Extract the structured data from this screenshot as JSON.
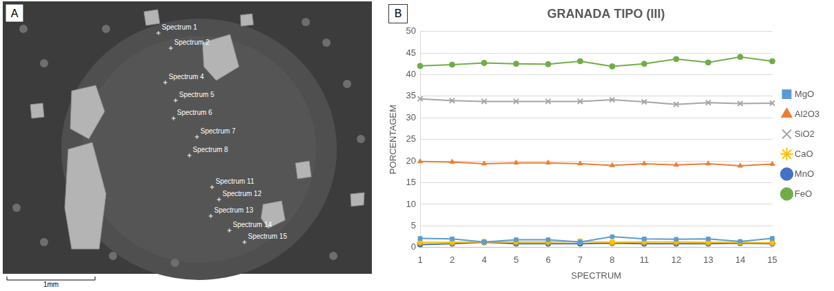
{
  "image_panel": {
    "letter": "A",
    "scale_bar": "1mm",
    "spectra": [
      "Spectrum 1",
      "Spectrum 2",
      "Spectrum 4",
      "Spectrum 5",
      "Spectrum 6",
      "Spectrum 7",
      "Spectrum 8",
      "Spectrum 11",
      "Spectrum 12",
      "Spectrum 13",
      "Spectrum 14",
      "Spectrum 15"
    ]
  },
  "chart_panel_letter": "B",
  "chart_data": {
    "type": "line",
    "title": "GRANADA TIPO (III)",
    "x_label": "SPECTRUM",
    "y_label": "PORCENTAGEM",
    "categories": [
      1,
      2,
      4,
      5,
      6,
      7,
      8,
      11,
      12,
      13,
      14,
      15
    ],
    "series": [
      {
        "name": "MgO",
        "color": "#5b9bd5",
        "marker": "square",
        "values": [
          2.1,
          2.0,
          1.3,
          1.8,
          1.8,
          1.3,
          2.5,
          2.0,
          1.9,
          2.0,
          1.4,
          2.1
        ]
      },
      {
        "name": "Al2O3",
        "color": "#ed7d31",
        "marker": "triangle",
        "values": [
          19.9,
          19.8,
          19.4,
          19.6,
          19.6,
          19.4,
          19.0,
          19.4,
          19.1,
          19.4,
          18.9,
          19.3
        ]
      },
      {
        "name": "SiO2",
        "color": "#a5a5a5",
        "marker": "cross",
        "values": [
          34.4,
          34.0,
          33.8,
          33.8,
          33.8,
          33.8,
          34.2,
          33.7,
          33.1,
          33.5,
          33.3,
          33.4
        ]
      },
      {
        "name": "CaO",
        "color": "#ffc000",
        "marker": "star",
        "values": [
          1.2,
          1.2,
          1.3,
          1.3,
          1.3,
          1.4,
          1.2,
          1.3,
          1.3,
          1.2,
          1.2,
          1.1
        ]
      },
      {
        "name": "MnO",
        "color": "#4472c4",
        "marker": "circle",
        "values": [
          0.7,
          0.9,
          1.2,
          0.9,
          0.9,
          0.9,
          1.0,
          0.9,
          0.9,
          0.9,
          1.0,
          0.9
        ]
      },
      {
        "name": "FeO",
        "color": "#70ad47",
        "marker": "circle",
        "values": [
          42.0,
          42.3,
          42.7,
          42.5,
          42.4,
          43.1,
          41.9,
          42.5,
          43.6,
          42.8,
          44.1,
          43.1
        ]
      }
    ],
    "ylim": [
      0,
      50
    ],
    "yticks": [
      0,
      5,
      10,
      15,
      20,
      25,
      30,
      35,
      40,
      45,
      50
    ],
    "grid": true,
    "legend": "right"
  }
}
